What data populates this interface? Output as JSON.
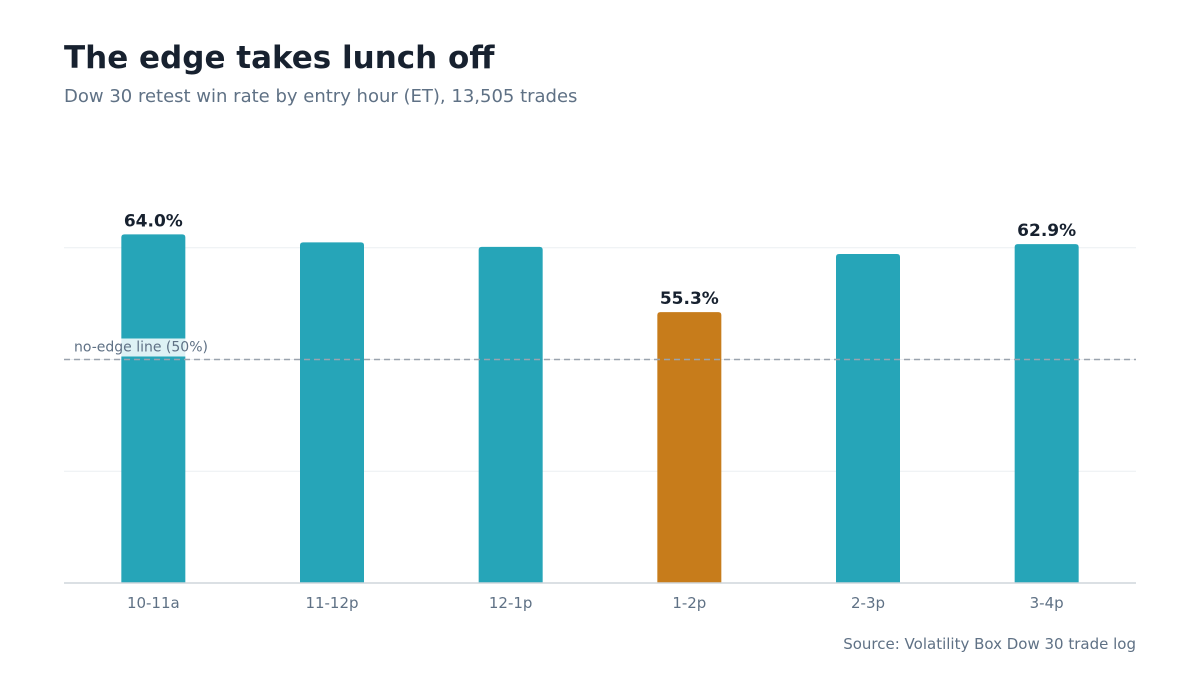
{
  "title": "The edge takes lunch off",
  "subtitle": "Dow 30 retest win rate by entry hour (ET), 13,505 trades",
  "source": "Source: Volatility Box Dow 30 trade log",
  "colors": {
    "bar": "#26a5b8",
    "highlight": "#c77c1b",
    "reference_line": "#9aa3ae",
    "grid": "#eceff2",
    "axis": "#cfd5db",
    "label_text": "#17212f",
    "tick_text": "#5f7185"
  },
  "chart_data": {
    "type": "bar",
    "categories": [
      "10-11a",
      "11-12p",
      "12-1p",
      "1-2p",
      "2-3p",
      "3-4p"
    ],
    "values": [
      64.0,
      63.1,
      62.6,
      55.3,
      61.8,
      62.9
    ],
    "data_labels": [
      "64.0%",
      "",
      "",
      "55.3%",
      "",
      "62.9%"
    ],
    "highlight_index": 3,
    "ylim": [
      25,
      67.5
    ],
    "gridlines": [
      25,
      37.5,
      50,
      62.5
    ],
    "grid": true,
    "reference_line": {
      "value": 50,
      "label": "no-edge line (50%)"
    },
    "xlabel": "",
    "ylabel": ""
  }
}
